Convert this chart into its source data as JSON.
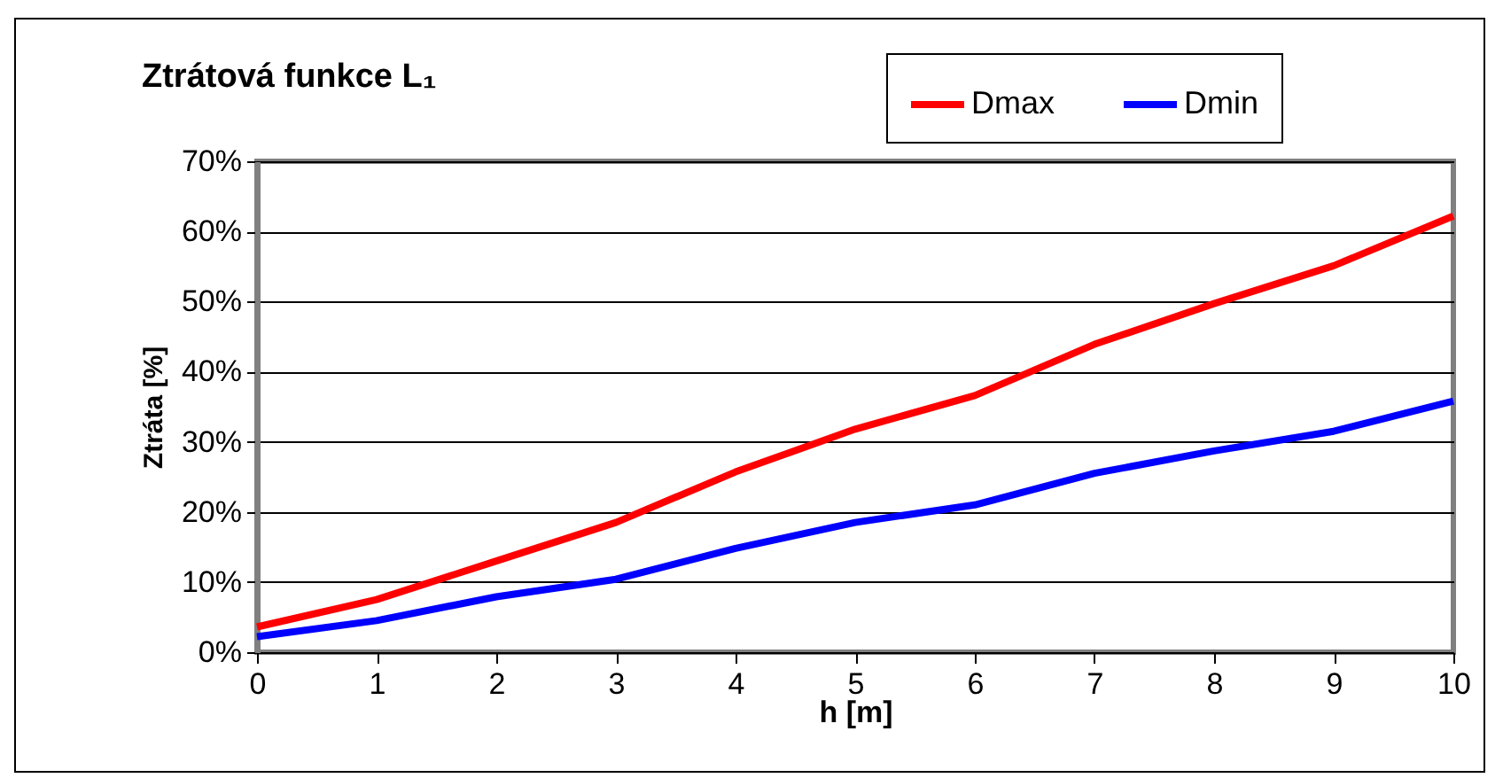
{
  "chart_data": {
    "type": "line",
    "title": "Ztrátová funkce L₁",
    "xlabel": "h [m]",
    "ylabel": "Ztráta [%]",
    "x": [
      0,
      1,
      2,
      3,
      4,
      5,
      6,
      7,
      8,
      9,
      10
    ],
    "series": [
      {
        "name": "Dmax",
        "color": "#ff0000",
        "values": [
          3.6,
          7.5,
          13.0,
          18.5,
          25.7,
          31.8,
          36.6,
          43.9,
          49.7,
          55.1,
          62.2
        ]
      },
      {
        "name": "Dmin",
        "color": "#0000ff",
        "values": [
          2.2,
          4.5,
          7.9,
          10.4,
          14.8,
          18.5,
          21.0,
          25.5,
          28.7,
          31.5,
          35.8
        ]
      }
    ],
    "xlim": [
      0,
      10
    ],
    "xticks": [
      0,
      1,
      2,
      3,
      4,
      5,
      6,
      7,
      8,
      9,
      10
    ],
    "ylim": [
      0,
      70
    ],
    "yticks": [
      {
        "value": 0,
        "label": "0%"
      },
      {
        "value": 10,
        "label": "10%"
      },
      {
        "value": 20,
        "label": "20%"
      },
      {
        "value": 30,
        "label": "30%"
      },
      {
        "value": 40,
        "label": "40%"
      },
      {
        "value": 50,
        "label": "50%"
      },
      {
        "value": 60,
        "label": "60%"
      },
      {
        "value": 70,
        "label": "70%"
      }
    ],
    "grid": "y",
    "legend": "top right",
    "marker": "none",
    "line_style": "solid"
  }
}
